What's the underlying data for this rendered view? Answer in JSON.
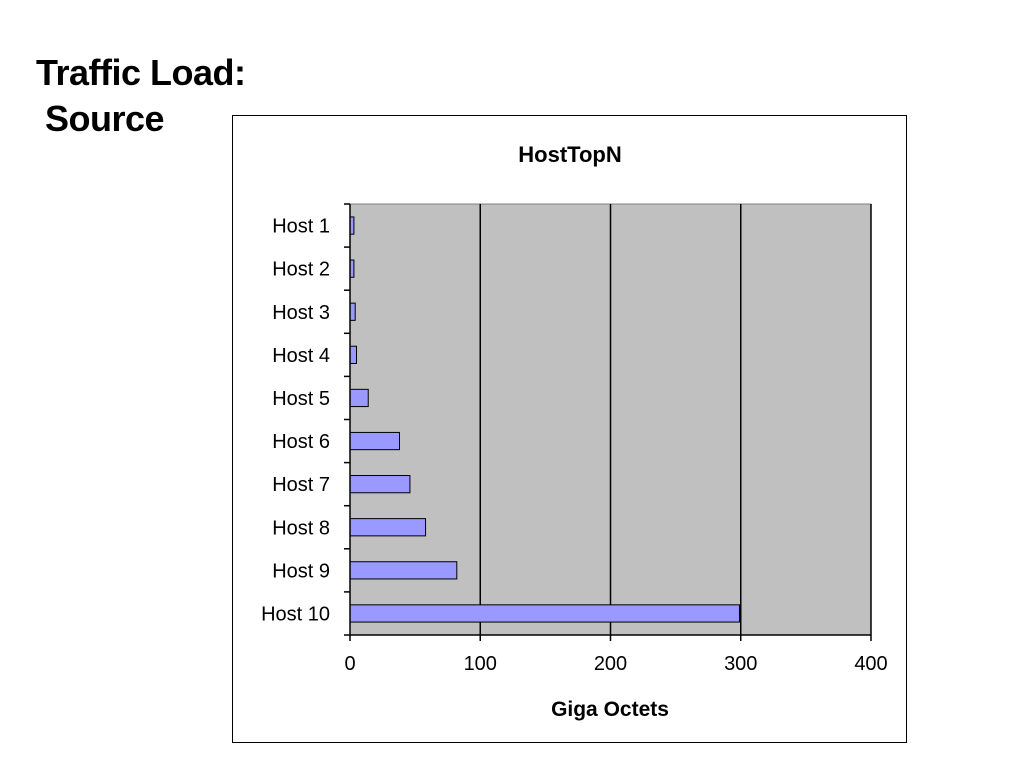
{
  "slide": {
    "title_line1": "Traffic Load:",
    "title_line2": "Source"
  },
  "chart_data": {
    "type": "bar",
    "orientation": "horizontal",
    "title": "HostTopN",
    "xlabel": "Giga Octets",
    "ylabel": "",
    "categories": [
      "Host 1",
      "Host 2",
      "Host 3",
      "Host 4",
      "Host 5",
      "Host 6",
      "Host 7",
      "Host 8",
      "Host 9",
      "Host 10"
    ],
    "values": [
      3,
      3,
      4,
      5,
      14,
      38,
      46,
      58,
      82,
      299
    ],
    "xlim": [
      0,
      400
    ],
    "xticks": [
      0,
      100,
      200,
      300,
      400
    ],
    "grid": "vertical major gridlines",
    "legend": "none",
    "colors": {
      "bar_fill": "#9999ff",
      "bar_stroke": "#000000",
      "plot_background": "#c0c0c0",
      "gridline": "#000000"
    }
  }
}
